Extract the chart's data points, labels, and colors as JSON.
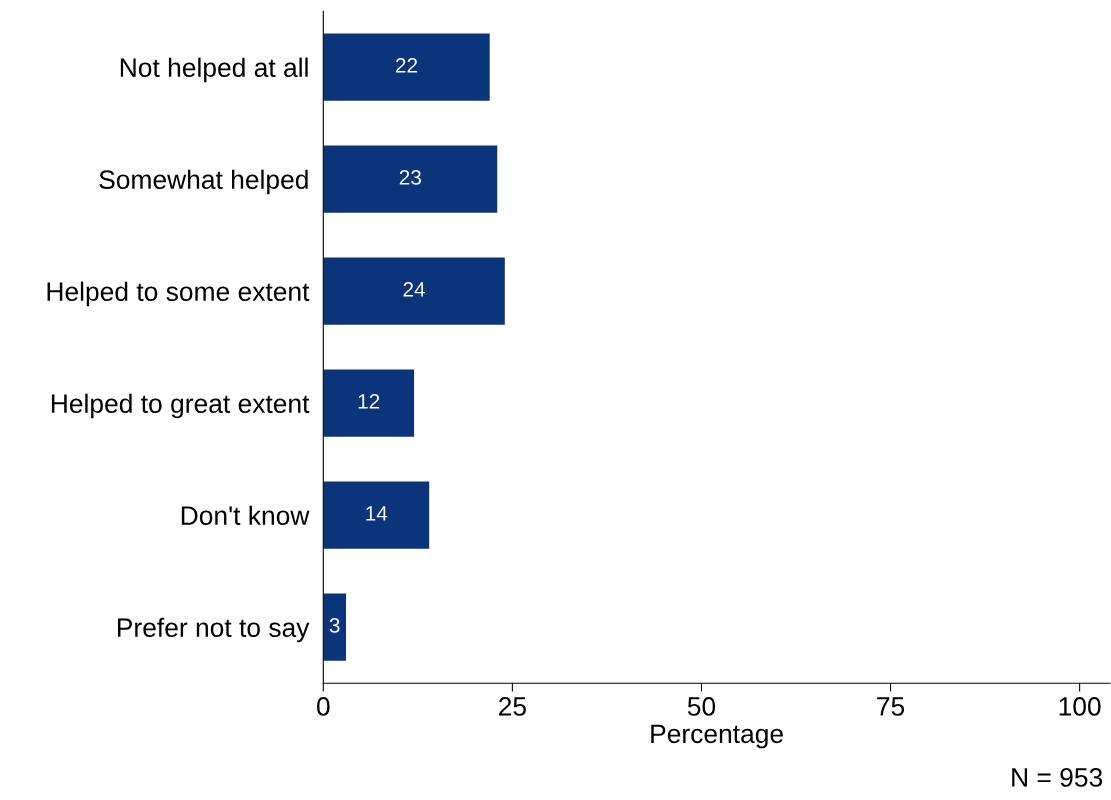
{
  "chart_data": {
    "type": "bar",
    "orientation": "horizontal",
    "categories": [
      "Not helped at all",
      "Somewhat helped",
      "Helped to some extent",
      "Helped to great extent",
      "Don't know",
      "Prefer not to say"
    ],
    "values": [
      22,
      23,
      24,
      12,
      14,
      3
    ],
    "color": "#0c347a",
    "data_labels": true,
    "xlabel": "Percentage",
    "xlim": [
      0,
      104
    ],
    "xticks": [
      0,
      25,
      50,
      75,
      100
    ],
    "grid": false,
    "legend": false,
    "annotations": [
      "N = 953"
    ]
  }
}
